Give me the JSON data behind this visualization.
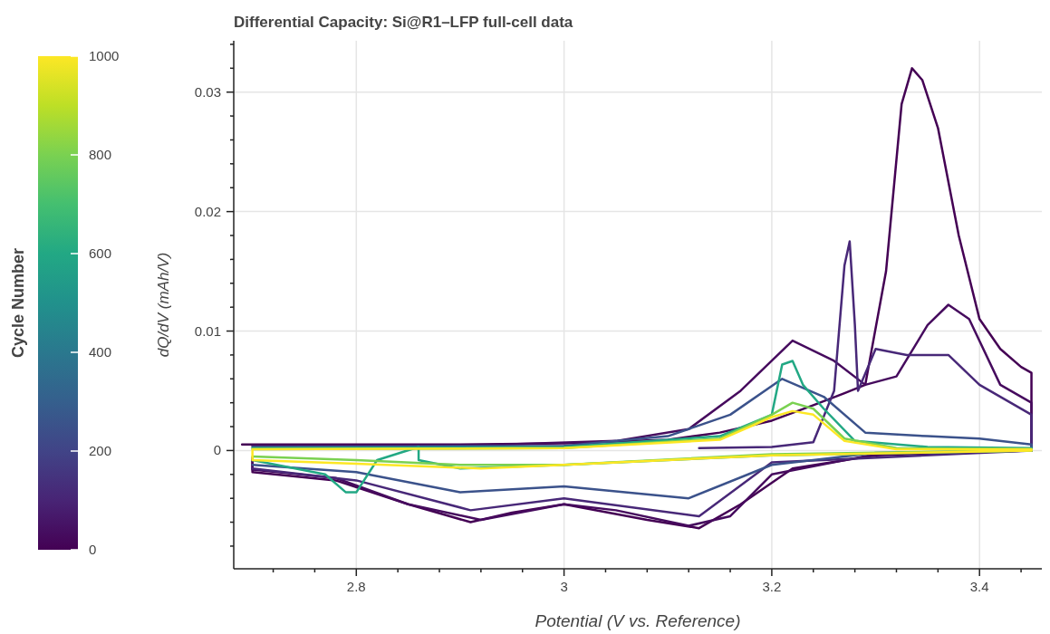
{
  "chart_data": {
    "type": "line",
    "title": "Differential Capacity: Si@R1–LFP full-cell data",
    "xlabel": "Potential (V vs. Reference)",
    "ylabel": "dQ/dV (mAh/V)",
    "clabel": "Cycle Number",
    "clim": [
      0,
      1000
    ],
    "cticks": [
      0,
      200,
      400,
      600,
      800,
      1000
    ],
    "xlim": [
      2.682,
      3.46
    ],
    "ylim": [
      -0.0099,
      0.0343
    ],
    "xticks": [
      {
        "value": 2.72,
        "label": null
      },
      {
        "value": 2.76,
        "label": null
      },
      {
        "value": 2.8,
        "label": "2.8"
      },
      {
        "value": 2.84,
        "label": null
      },
      {
        "value": 2.88,
        "label": null
      },
      {
        "value": 2.92,
        "label": null
      },
      {
        "value": 2.96,
        "label": null
      },
      {
        "value": 3,
        "label": "3"
      },
      {
        "value": 3.04,
        "label": null
      },
      {
        "value": 3.08,
        "label": null
      },
      {
        "value": 3.12,
        "label": null
      },
      {
        "value": 3.16,
        "label": null
      },
      {
        "value": 3.2,
        "label": "3.2"
      },
      {
        "value": 3.24,
        "label": null
      },
      {
        "value": 3.28,
        "label": null
      },
      {
        "value": 3.32,
        "label": null
      },
      {
        "value": 3.36,
        "label": null
      },
      {
        "value": 3.4,
        "label": "3.4"
      },
      {
        "value": 3.44,
        "label": null
      }
    ],
    "yticks": [
      {
        "value": -0.008,
        "label": null
      },
      {
        "value": -0.006,
        "label": null
      },
      {
        "value": -0.004,
        "label": null
      },
      {
        "value": -0.002,
        "label": null
      },
      {
        "value": 0,
        "label": "0"
      },
      {
        "value": 0.002,
        "label": null
      },
      {
        "value": 0.004,
        "label": null
      },
      {
        "value": 0.006,
        "label": null
      },
      {
        "value": 0.008,
        "label": null
      },
      {
        "value": 0.01,
        "label": "0.01"
      },
      {
        "value": 0.012,
        "label": null
      },
      {
        "value": 0.014,
        "label": null
      },
      {
        "value": 0.016,
        "label": null
      },
      {
        "value": 0.018,
        "label": null
      },
      {
        "value": 0.02,
        "label": "0.02"
      },
      {
        "value": 0.022,
        "label": null
      },
      {
        "value": 0.024,
        "label": null
      },
      {
        "value": 0.026,
        "label": null
      },
      {
        "value": 0.028,
        "label": null
      },
      {
        "value": 0.03,
        "label": "0.03"
      },
      {
        "value": 0.032,
        "label": null
      },
      {
        "value": 0.034,
        "label": null
      }
    ],
    "grid": true,
    "line_style": "solid",
    "series": [
      {
        "color": "#440154",
        "x": [
          2.69,
          2.8,
          2.9,
          3.0,
          3.1,
          3.15,
          3.2,
          3.24,
          3.27,
          3.29,
          3.31,
          3.325,
          3.335,
          3.345,
          3.36,
          3.38,
          3.4,
          3.42,
          3.44,
          3.45,
          3.45,
          3.4,
          3.3,
          3.22,
          3.17,
          3.13,
          3.08,
          3.0,
          2.95,
          2.91,
          2.85,
          2.78,
          2.7,
          2.7
        ],
        "values": [
          0.0005,
          0.0005,
          0.0005,
          0.0006,
          0.0009,
          0.0015,
          0.0025,
          0.0038,
          0.0048,
          0.0055,
          0.015,
          0.029,
          0.032,
          0.031,
          0.027,
          0.018,
          0.011,
          0.0085,
          0.007,
          0.0065,
          0,
          -0.0001,
          -0.0004,
          -0.0015,
          -0.0045,
          -0.0065,
          -0.0058,
          -0.0045,
          -0.0052,
          -0.006,
          -0.0045,
          -0.0025,
          -0.0018,
          -0.0008
        ]
      },
      {
        "color": "#460b5e",
        "x": [
          2.7,
          2.9,
          3.05,
          3.12,
          3.17,
          3.22,
          3.26,
          3.29,
          3.32,
          3.35,
          3.37,
          3.39,
          3.42,
          3.45,
          3.45,
          3.3,
          3.2,
          3.16,
          3.12,
          3.05,
          3.0,
          2.92,
          2.85,
          2.78,
          2.7,
          2.7
        ],
        "values": [
          0.0004,
          0.0004,
          0.0008,
          0.0018,
          0.005,
          0.0092,
          0.0075,
          0.0055,
          0.0062,
          0.0105,
          0.0122,
          0.011,
          0.0055,
          0.004,
          0,
          -0.0003,
          -0.002,
          -0.0055,
          -0.0063,
          -0.005,
          -0.0045,
          -0.0058,
          -0.0045,
          -0.0023,
          -0.0016,
          -0.0006
        ]
      },
      {
        "color": "#482878",
        "x": [
          3.13,
          3.2,
          3.24,
          3.26,
          3.27,
          3.275,
          3.28,
          3.283,
          3.3,
          3.33,
          3.37,
          3.4,
          3.45,
          3.45,
          3.2,
          3.13,
          3.0,
          2.91,
          2.8,
          2.7
        ],
        "values": [
          0.0002,
          0.0003,
          0.0007,
          0.005,
          0.0155,
          0.0175,
          0.0105,
          0.005,
          0.0085,
          0.008,
          0.008,
          0.0055,
          0.003,
          0,
          -0.001,
          -0.0055,
          -0.004,
          -0.005,
          -0.0025,
          -0.0015
        ]
      },
      {
        "color": "#3b528b",
        "x": [
          2.7,
          3.0,
          3.1,
          3.16,
          3.21,
          3.25,
          3.29,
          3.35,
          3.4,
          3.45,
          3.45,
          3.3,
          3.2,
          3.12,
          3.0,
          2.9,
          2.8,
          2.7
        ],
        "values": [
          0.0003,
          0.0004,
          0.0012,
          0.003,
          0.006,
          0.0045,
          0.0015,
          0.0012,
          0.001,
          0.0005,
          0,
          -0.0002,
          -0.0012,
          -0.004,
          -0.003,
          -0.0035,
          -0.0018,
          -0.0012
        ]
      },
      {
        "color": "#22a884",
        "x": [
          2.7,
          3.0,
          3.15,
          3.2,
          3.21,
          3.22,
          3.23,
          3.25,
          3.28,
          3.35,
          3.45,
          3.45,
          3.2,
          3.0,
          2.9,
          2.86,
          2.86,
          2.82,
          2.8,
          2.79,
          2.77,
          2.7
        ],
        "values": [
          0.0002,
          0.0003,
          0.0012,
          0.003,
          0.0072,
          0.0075,
          0.0055,
          0.0035,
          0.0008,
          0.0003,
          0.0002,
          0,
          -0.0004,
          -0.0012,
          -0.0015,
          -0.0008,
          0.0003,
          -0.0008,
          -0.0035,
          -0.0035,
          -0.002,
          -0.0008
        ]
      },
      {
        "color": "#7ad151",
        "x": [
          2.7,
          3.0,
          3.15,
          3.2,
          3.22,
          3.24,
          3.27,
          3.32,
          3.45,
          3.45,
          3.2,
          3.0,
          2.9,
          2.8,
          2.7
        ],
        "values": [
          0.0001,
          0.0002,
          0.001,
          0.003,
          0.004,
          0.0035,
          0.001,
          0.0002,
          0.0001,
          0,
          -0.0003,
          -0.0012,
          -0.0012,
          -0.0008,
          -0.0005
        ]
      },
      {
        "color": "#fde725",
        "x": [
          2.7,
          3.0,
          3.15,
          3.2,
          3.22,
          3.24,
          3.27,
          3.32,
          3.45,
          3.45,
          3.2,
          3.0,
          2.92,
          2.8,
          2.7,
          2.7
        ],
        "values": [
          0.0001,
          0.0002,
          0.0009,
          0.0028,
          0.0033,
          0.003,
          0.0008,
          0.0001,
          0.0001,
          0,
          -0.0004,
          -0.0012,
          -0.0015,
          -0.0011,
          -0.0008,
          0
        ]
      }
    ]
  }
}
